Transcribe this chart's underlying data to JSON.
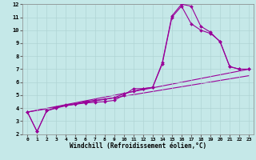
{
  "xlabel": "Windchill (Refroidissement éolien,°C)",
  "background_color": "#c5e8e8",
  "grid_color": "#b0d4d4",
  "line_color": "#990099",
  "xlim": [
    -0.5,
    23.5
  ],
  "ylim": [
    2,
    12
  ],
  "xticks": [
    0,
    1,
    2,
    3,
    4,
    5,
    6,
    7,
    8,
    9,
    10,
    11,
    12,
    13,
    14,
    15,
    16,
    17,
    18,
    19,
    20,
    21,
    22,
    23
  ],
  "yticks": [
    2,
    3,
    4,
    5,
    6,
    7,
    8,
    9,
    10,
    11,
    12
  ],
  "line1_x": [
    0,
    1,
    2,
    3,
    4,
    5,
    6,
    7,
    8,
    9,
    10,
    11,
    12,
    13,
    14,
    15,
    16,
    17,
    18,
    19,
    20,
    21,
    22,
    23
  ],
  "line1_y": [
    3.7,
    2.2,
    3.8,
    4.0,
    4.2,
    4.3,
    4.4,
    4.45,
    4.5,
    4.6,
    5.0,
    5.5,
    5.5,
    5.6,
    7.5,
    11.1,
    12.0,
    11.85,
    10.3,
    9.85,
    9.1,
    7.2,
    7.0,
    7.0
  ],
  "line2_x": [
    0,
    1,
    2,
    3,
    4,
    5,
    6,
    7,
    8,
    9,
    10,
    11,
    12,
    13,
    14,
    15,
    16,
    17,
    18,
    19,
    20,
    21,
    22,
    23
  ],
  "line2_y": [
    3.7,
    2.2,
    3.8,
    4.05,
    4.25,
    4.35,
    4.5,
    4.6,
    4.7,
    4.8,
    5.1,
    5.3,
    5.5,
    5.6,
    7.4,
    11.0,
    11.85,
    10.5,
    10.0,
    9.75,
    9.15,
    7.2,
    7.0,
    7.0
  ],
  "line3_x": [
    0,
    23
  ],
  "line3_y": [
    3.7,
    7.0
  ],
  "line4_x": [
    0,
    23
  ],
  "line4_y": [
    3.7,
    6.5
  ]
}
